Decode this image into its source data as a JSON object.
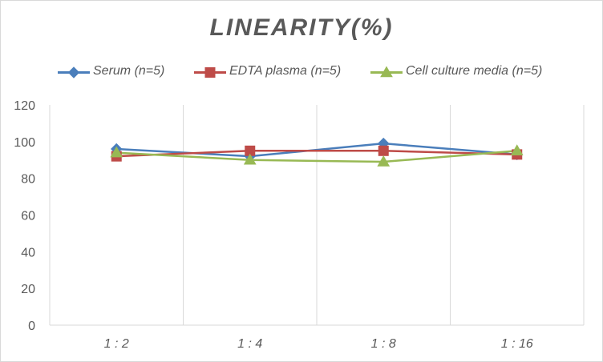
{
  "chart_data": {
    "type": "line",
    "title": "LINEARITY(%)",
    "categories": [
      "1:2",
      "1:4",
      "1:8",
      "1:16"
    ],
    "series": [
      {
        "name": "Serum (n=5)",
        "values": [
          96,
          92,
          99,
          93
        ],
        "color": "#4a7ebb",
        "marker": "diamond"
      },
      {
        "name": "EDTA plasma (n=5)",
        "values": [
          92,
          95,
          95,
          93
        ],
        "color": "#be4b48",
        "marker": "square"
      },
      {
        "name": "Cell culture media (n=5)",
        "values": [
          94,
          90,
          89,
          95
        ],
        "color": "#98b954",
        "marker": "triangle"
      }
    ],
    "ylim": [
      0,
      120
    ],
    "yticks": [
      0,
      20,
      40,
      60,
      80,
      100,
      120
    ],
    "grid": "vertical category lines",
    "legend_position": "top"
  }
}
